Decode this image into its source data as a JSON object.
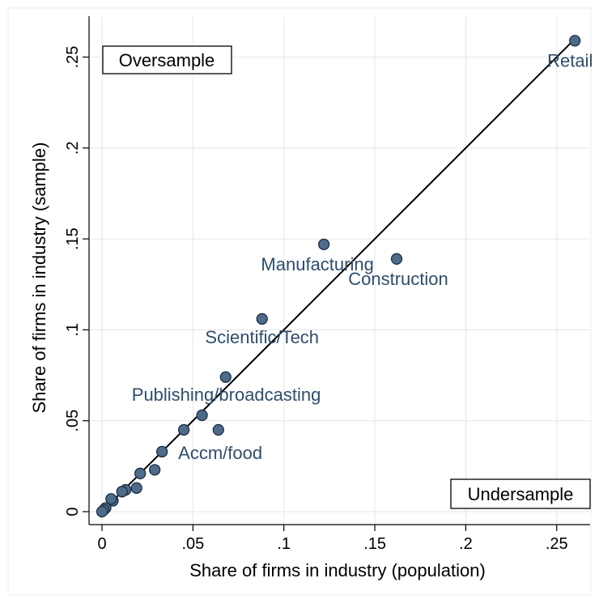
{
  "chart_data": {
    "type": "scatter",
    "xlabel": "Share of firms in industry (population)",
    "ylabel": "Share of firms in industry (sample)",
    "xlim": [
      0,
      0.26
    ],
    "ylim": [
      0,
      0.26
    ],
    "x_ticks": [
      {
        "value": 0,
        "label": "0"
      },
      {
        "value": 0.05,
        "label": ".05"
      },
      {
        "value": 0.1,
        "label": ".1"
      },
      {
        "value": 0.15,
        "label": ".15"
      },
      {
        "value": 0.2,
        "label": ".2"
      },
      {
        "value": 0.25,
        "label": ".25"
      }
    ],
    "y_ticks": [
      {
        "value": 0,
        "label": "0"
      },
      {
        "value": 0.05,
        "label": ".05"
      },
      {
        "value": 0.1,
        "label": ".1"
      },
      {
        "value": 0.15,
        "label": ".15"
      },
      {
        "value": 0.2,
        "label": ".2"
      },
      {
        "value": 0.25,
        "label": ".25"
      }
    ],
    "grid": true,
    "reference_line": {
      "from": [
        0,
        0
      ],
      "to": [
        0.26,
        0.26
      ]
    },
    "points": [
      {
        "x": 0.26,
        "y": 0.259,
        "label": "Retail"
      },
      {
        "x": 0.122,
        "y": 0.147,
        "label": "Manufacturing"
      },
      {
        "x": 0.162,
        "y": 0.139,
        "label": "Construction"
      },
      {
        "x": 0.088,
        "y": 0.106,
        "label": "Scientific/Tech"
      },
      {
        "x": 0.068,
        "y": 0.074,
        "label": ""
      },
      {
        "x": 0.055,
        "y": 0.053,
        "label": "Publishing/broadcasting"
      },
      {
        "x": 0.064,
        "y": 0.045,
        "label": ""
      },
      {
        "x": 0.045,
        "y": 0.045,
        "label": ""
      },
      {
        "x": 0.033,
        "y": 0.033,
        "label": "Accm/food"
      },
      {
        "x": 0.029,
        "y": 0.023,
        "label": ""
      },
      {
        "x": 0.021,
        "y": 0.021,
        "label": ""
      },
      {
        "x": 0.019,
        "y": 0.013,
        "label": ""
      },
      {
        "x": 0.013,
        "y": 0.012,
        "label": ""
      },
      {
        "x": 0.011,
        "y": 0.011,
        "label": ""
      },
      {
        "x": 0.006,
        "y": 0.006,
        "label": ""
      },
      {
        "x": 0.005,
        "y": 0.007,
        "label": ""
      },
      {
        "x": 0.002,
        "y": 0.002,
        "label": ""
      },
      {
        "x": 0.001,
        "y": 0.001,
        "label": ""
      },
      {
        "x": 0.0,
        "y": 0.0,
        "label": ""
      }
    ],
    "annotations": [
      {
        "text": "Oversample",
        "position": "top-left"
      },
      {
        "text": "Undersample",
        "position": "bottom-right"
      }
    ]
  }
}
